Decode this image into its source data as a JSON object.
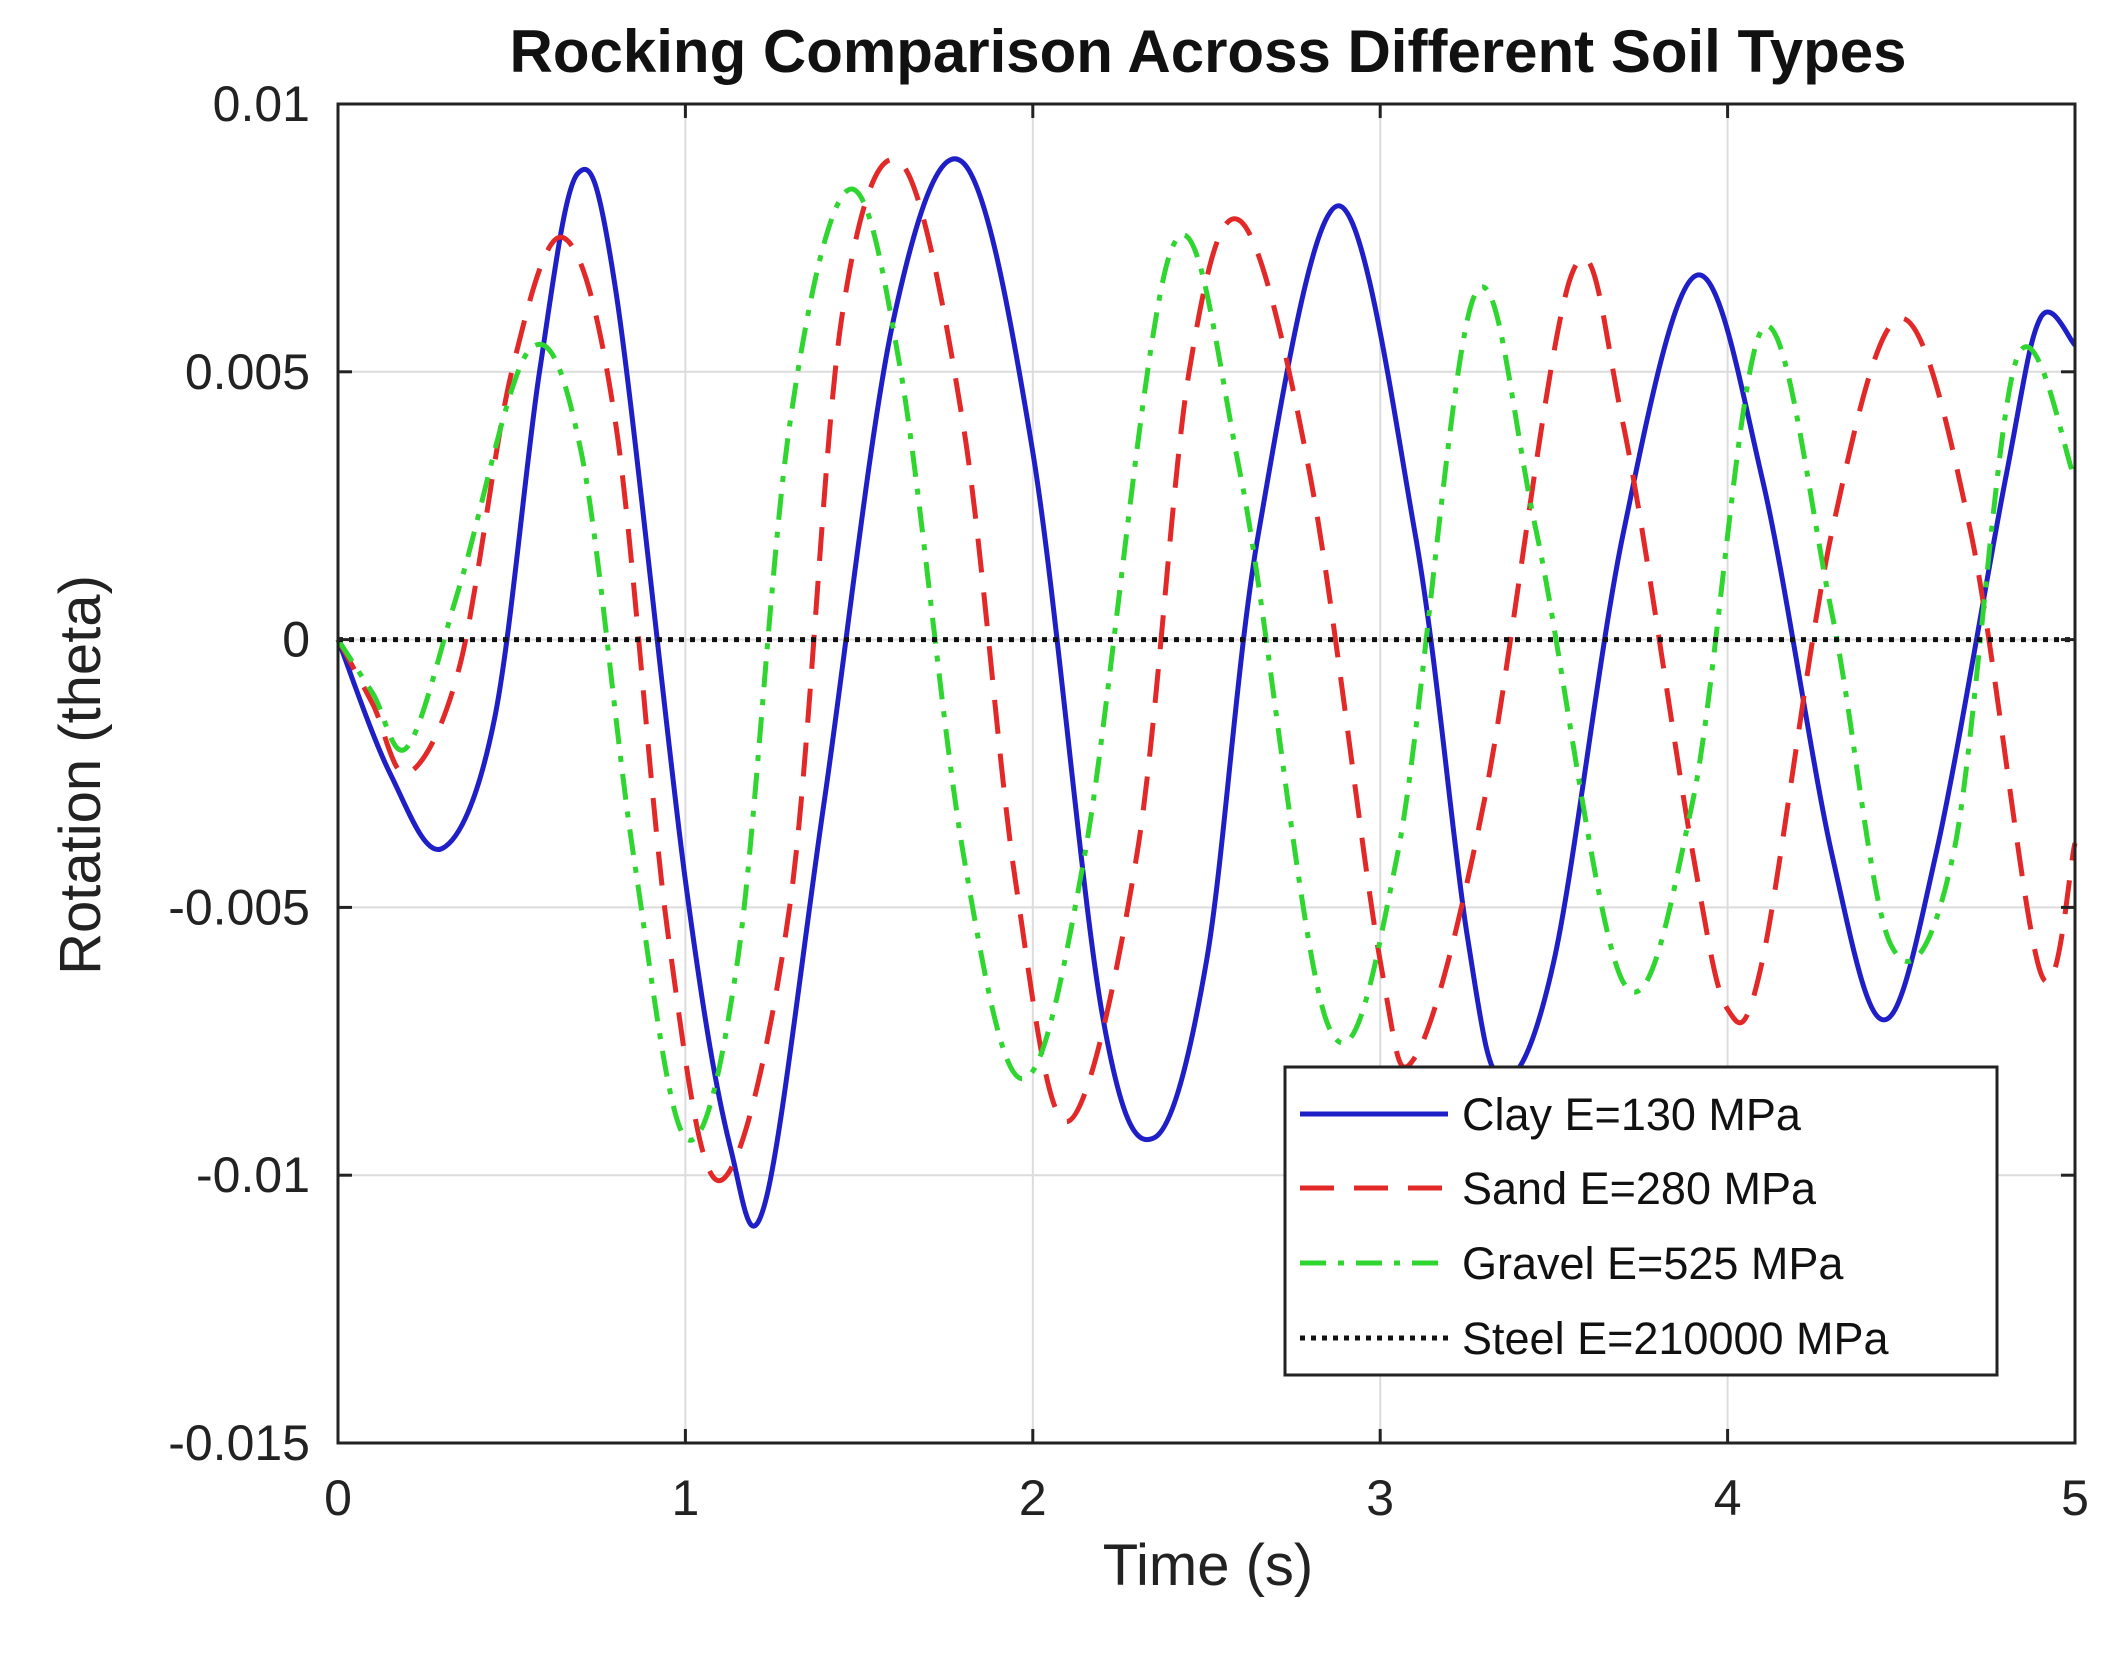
{
  "chart_data": {
    "type": "line",
    "title": "Rocking Comparison Across Different Soil Types",
    "xlabel": "Time (s)",
    "ylabel": "Rotation (theta)",
    "xlim": [
      0,
      5
    ],
    "ylim": [
      -0.015,
      0.01
    ],
    "xticks": [
      0,
      1,
      2,
      3,
      4,
      5
    ],
    "xtick_labels": [
      "0",
      "1",
      "2",
      "3",
      "4",
      "5"
    ],
    "yticks": [
      -0.015,
      -0.01,
      -0.005,
      0,
      0.005,
      0.01
    ],
    "ytick_labels": [
      "-0.015",
      "-0.01",
      "-0.005",
      "0",
      "0.005",
      "0.01"
    ],
    "grid": true,
    "legend_position": "bottom-right",
    "series": [
      {
        "name": "Clay E=130 MPa",
        "color": "#1f1fc8",
        "style": "solid",
        "x": [
          0,
          0.15,
          0.3,
          0.45,
          0.58,
          0.69,
          0.8,
          1.0,
          1.13,
          1.23,
          1.4,
          1.6,
          1.8,
          2.0,
          2.2,
          2.35,
          2.5,
          2.65,
          2.88,
          3.1,
          3.25,
          3.35,
          3.5,
          3.7,
          3.91,
          4.1,
          4.3,
          4.45,
          4.6,
          4.8,
          4.9,
          5.0
        ],
        "y": [
          0,
          -0.0025,
          -0.0039,
          -0.0015,
          0.005,
          0.0087,
          0.0065,
          -0.0045,
          -0.0095,
          -0.0105,
          -0.003,
          0.006,
          0.0089,
          0.0035,
          -0.007,
          -0.0093,
          -0.006,
          0.002,
          0.0081,
          0.002,
          -0.0055,
          -0.0082,
          -0.006,
          0.002,
          0.0068,
          0.003,
          -0.004,
          -0.0071,
          -0.004,
          0.003,
          0.006,
          0.0055
        ]
      },
      {
        "name": "Sand E=280 MPa",
        "color": "#e32828",
        "style": "dashed",
        "x": [
          0,
          0.1,
          0.2,
          0.35,
          0.5,
          0.65,
          0.8,
          0.95,
          1.1,
          1.3,
          1.45,
          1.62,
          1.8,
          1.95,
          2.1,
          2.3,
          2.45,
          2.6,
          2.8,
          3.0,
          3.1,
          3.3,
          3.55,
          3.7,
          3.9,
          4.0,
          4.1,
          4.3,
          4.5,
          4.7,
          4.9,
          5.0
        ],
        "y": [
          0,
          -0.0012,
          -0.0025,
          -0.0005,
          0.005,
          0.0075,
          0.004,
          -0.0055,
          -0.0101,
          -0.005,
          0.006,
          0.0089,
          0.004,
          -0.0045,
          -0.009,
          -0.004,
          0.005,
          0.0078,
          0.003,
          -0.006,
          -0.0078,
          -0.003,
          0.0068,
          0.004,
          -0.004,
          -0.0069,
          -0.006,
          0.002,
          0.006,
          0.002,
          -0.0062,
          -0.0038
        ]
      },
      {
        "name": "Gravel E=525 MPa",
        "color": "#2fd62f",
        "style": "dashdot",
        "x": [
          0,
          0.1,
          0.2,
          0.35,
          0.55,
          0.7,
          0.85,
          1.0,
          1.15,
          1.3,
          1.47,
          1.62,
          1.8,
          1.97,
          2.15,
          2.4,
          2.6,
          2.85,
          3.05,
          3.27,
          3.45,
          3.7,
          3.9,
          4.1,
          4.3,
          4.47,
          4.65,
          4.83,
          5.0
        ],
        "y": [
          0,
          -0.001,
          -0.002,
          0.001,
          0.0054,
          0.0035,
          -0.004,
          -0.0093,
          -0.006,
          0.004,
          0.0084,
          0.005,
          -0.004,
          -0.0082,
          -0.004,
          0.0073,
          0.003,
          -0.0072,
          -0.004,
          0.0064,
          0.002,
          -0.0064,
          -0.003,
          0.0058,
          0.0005,
          -0.0057,
          -0.004,
          0.0052,
          0.003
        ]
      },
      {
        "name": "Steel E=210000 MPa",
        "color": "#111111",
        "style": "dotted",
        "x": [
          0,
          5
        ],
        "y": [
          0,
          0
        ]
      }
    ]
  }
}
